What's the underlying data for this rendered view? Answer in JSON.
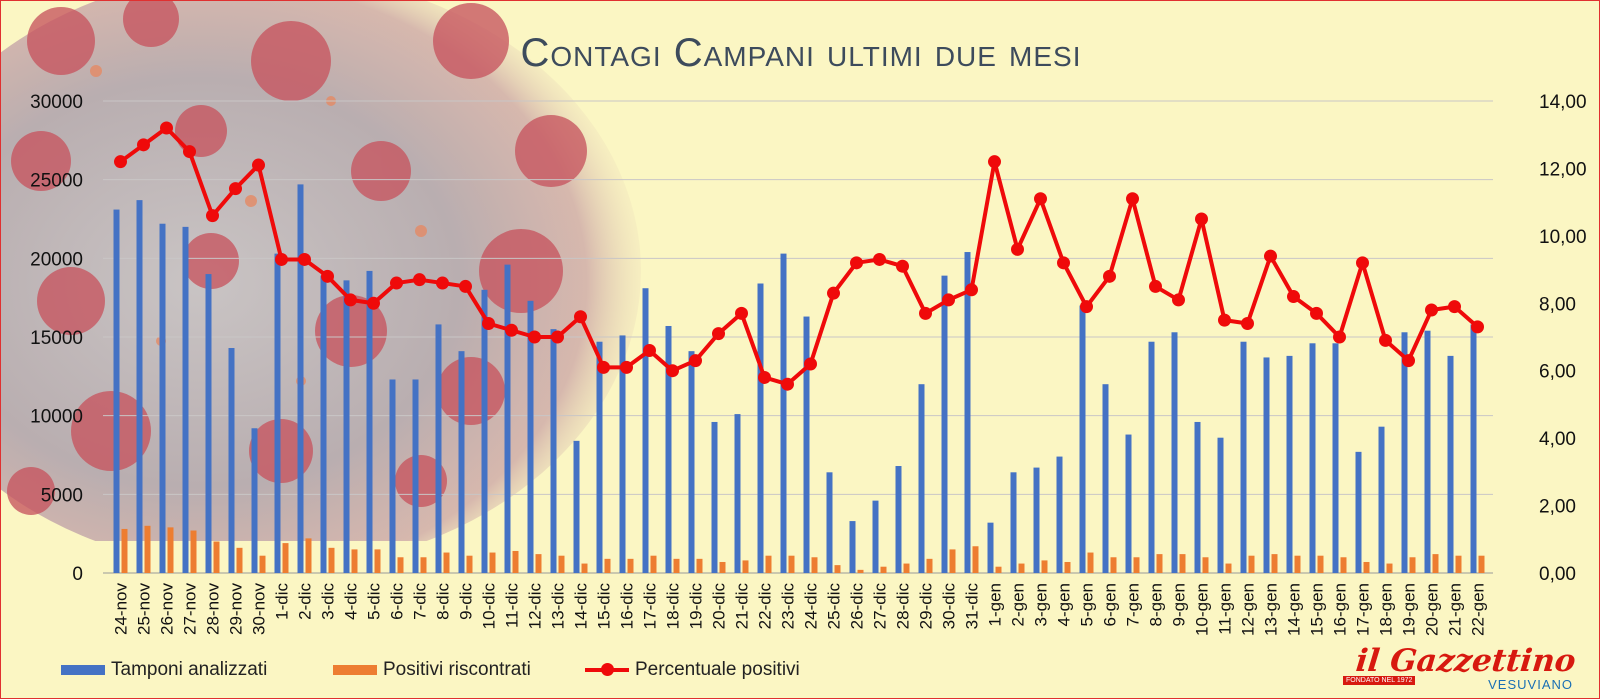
{
  "chart_data": {
    "type": "bar",
    "title": "Contagi Campani ultimi due mesi",
    "categories": [
      "24-nov",
      "25-nov",
      "26-nov",
      "27-nov",
      "28-nov",
      "29-nov",
      "30-nov",
      "1-dic",
      "2-dic",
      "3-dic",
      "4-dic",
      "5-dic",
      "6-dic",
      "7-dic",
      "8-dic",
      "9-dic",
      "10-dic",
      "11-dic",
      "12-dic",
      "13-dic",
      "14-dic",
      "15-dic",
      "16-dic",
      "17-dic",
      "18-dic",
      "19-dic",
      "20-dic",
      "21-dic",
      "22-dic",
      "23-dic",
      "24-dic",
      "25-dic",
      "26-dic",
      "27-dic",
      "28-dic",
      "29-dic",
      "30-dic",
      "31-dic",
      "1-gen",
      "2-gen",
      "3-gen",
      "4-gen",
      "5-gen",
      "6-gen",
      "7-gen",
      "8-gen",
      "9-gen",
      "10-gen",
      "11-gen",
      "12-gen",
      "13-gen",
      "14-gen",
      "15-gen",
      "16-gen",
      "17-gen",
      "18-gen",
      "19-gen",
      "20-gen",
      "21-gen",
      "22-gen"
    ],
    "y_left": {
      "ylim": [
        0,
        30000
      ],
      "ticks": [
        "0",
        "5000",
        "10000",
        "15000",
        "20000",
        "25000",
        "30000"
      ]
    },
    "y_right": {
      "ylim": [
        0,
        14
      ],
      "ticks": [
        "0,00",
        "2,00",
        "4,00",
        "6,00",
        "8,00",
        "10,00",
        "12,00",
        "14,00"
      ]
    },
    "series": [
      {
        "name": "Tamponi analizzati",
        "type": "bar",
        "axis": "left",
        "color": "#4472c4",
        "values": [
          23100,
          23700,
          22200,
          22000,
          19000,
          14300,
          9200,
          20300,
          24700,
          18900,
          18600,
          19200,
          12300,
          12300,
          15800,
          14100,
          18000,
          19600,
          17300,
          15500,
          8400,
          14700,
          15100,
          18100,
          15700,
          14100,
          9600,
          10100,
          18400,
          20300,
          16300,
          6400,
          3300,
          4600,
          6800,
          12000,
          18900,
          20400,
          3200,
          6400,
          6700,
          7400,
          17000,
          12000,
          8800,
          14700,
          15300,
          9600,
          8600,
          14700,
          13700,
          13800,
          14600,
          14600,
          7700,
          9300,
          15300,
          15400,
          13800,
          15800
        ]
      },
      {
        "name": "Positivi riscontrati",
        "type": "bar",
        "axis": "left",
        "color": "#ed7d31",
        "values": [
          2800,
          3000,
          2900,
          2700,
          2000,
          1600,
          1100,
          1900,
          2200,
          1600,
          1500,
          1500,
          1000,
          1000,
          1300,
          1100,
          1300,
          1400,
          1200,
          1100,
          600,
          900,
          900,
          1100,
          900,
          900,
          700,
          800,
          1100,
          1100,
          1000,
          500,
          200,
          400,
          600,
          900,
          1500,
          1700,
          400,
          600,
          800,
          700,
          1300,
          1000,
          1000,
          1200,
          1200,
          1000,
          600,
          1100,
          1200,
          1100,
          1100,
          1000,
          700,
          600,
          1000,
          1200,
          1100,
          1100
        ]
      },
      {
        "name": "Percentuale positivi",
        "type": "line",
        "axis": "right",
        "color": "#ef0a0a",
        "values": [
          12.2,
          12.7,
          13.2,
          12.5,
          10.6,
          11.4,
          12.1,
          9.3,
          9.3,
          8.8,
          8.1,
          8.0,
          8.6,
          8.7,
          8.6,
          8.5,
          7.4,
          7.2,
          7.0,
          7.0,
          7.6,
          6.1,
          6.1,
          6.6,
          6.0,
          6.3,
          7.1,
          7.7,
          5.8,
          5.6,
          6.2,
          8.3,
          9.2,
          9.3,
          9.1,
          7.7,
          8.1,
          8.4,
          12.2,
          9.6,
          11.1,
          9.2,
          7.9,
          8.8,
          11.1,
          8.5,
          8.1,
          10.5,
          7.5,
          7.4,
          9.4,
          8.2,
          7.7,
          7.0,
          9.2,
          6.9,
          6.3,
          7.8,
          7.9,
          7.3
        ]
      }
    ]
  },
  "logo": {
    "name": "il Gazzettino",
    "sub": "VESUVIANO",
    "tag": "FONDATO NEL 1972"
  }
}
